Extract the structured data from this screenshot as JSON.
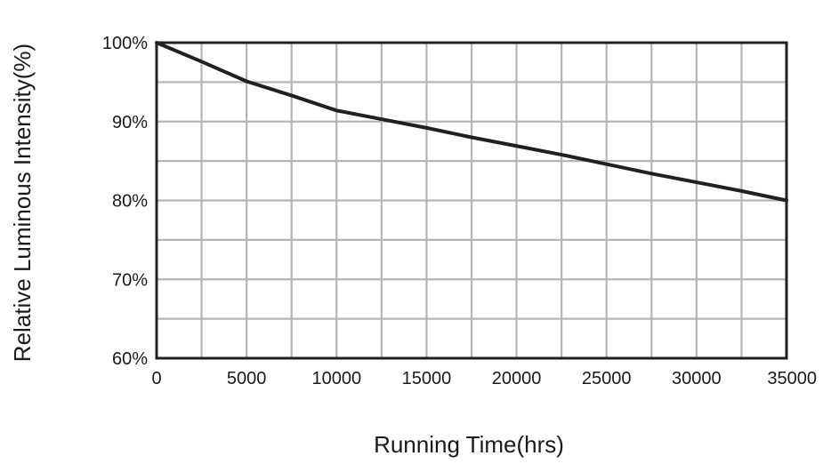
{
  "chart_data": {
    "type": "line",
    "title": "",
    "xlabel": "Running Time(hrs)",
    "ylabel": "Relative Luminous Intensity(%)",
    "xlim": [
      0,
      35000
    ],
    "ylim": [
      60,
      100
    ],
    "x_ticks": [
      0,
      5000,
      10000,
      15000,
      20000,
      25000,
      30000,
      35000
    ],
    "x_tick_labels": [
      "0",
      "5000",
      "10000",
      "15000",
      "20000",
      "25000",
      "30000",
      "35000"
    ],
    "y_ticks": [
      60,
      70,
      80,
      90,
      100
    ],
    "y_tick_labels": [
      "60%",
      "70%",
      "80%",
      "90%",
      "100%"
    ],
    "x_grid_step": 2500,
    "y_grid_step": 5,
    "grid": true,
    "legend": "none",
    "colors": {
      "grid": "#b5b5b5",
      "frame": "#231f20",
      "line": "#231f20",
      "text": "#1a1a1a"
    },
    "series": [
      {
        "x": [
          0,
          2500,
          5000,
          7500,
          10000,
          12500,
          15000,
          17500,
          20000,
          22500,
          25000,
          27500,
          30000,
          32500,
          35000
        ],
        "values": [
          100,
          97.6,
          95.1,
          93.3,
          91.4,
          90.3,
          89.2,
          88.0,
          86.9,
          85.8,
          84.6,
          83.4,
          82.3,
          81.2,
          80.0
        ]
      }
    ]
  }
}
